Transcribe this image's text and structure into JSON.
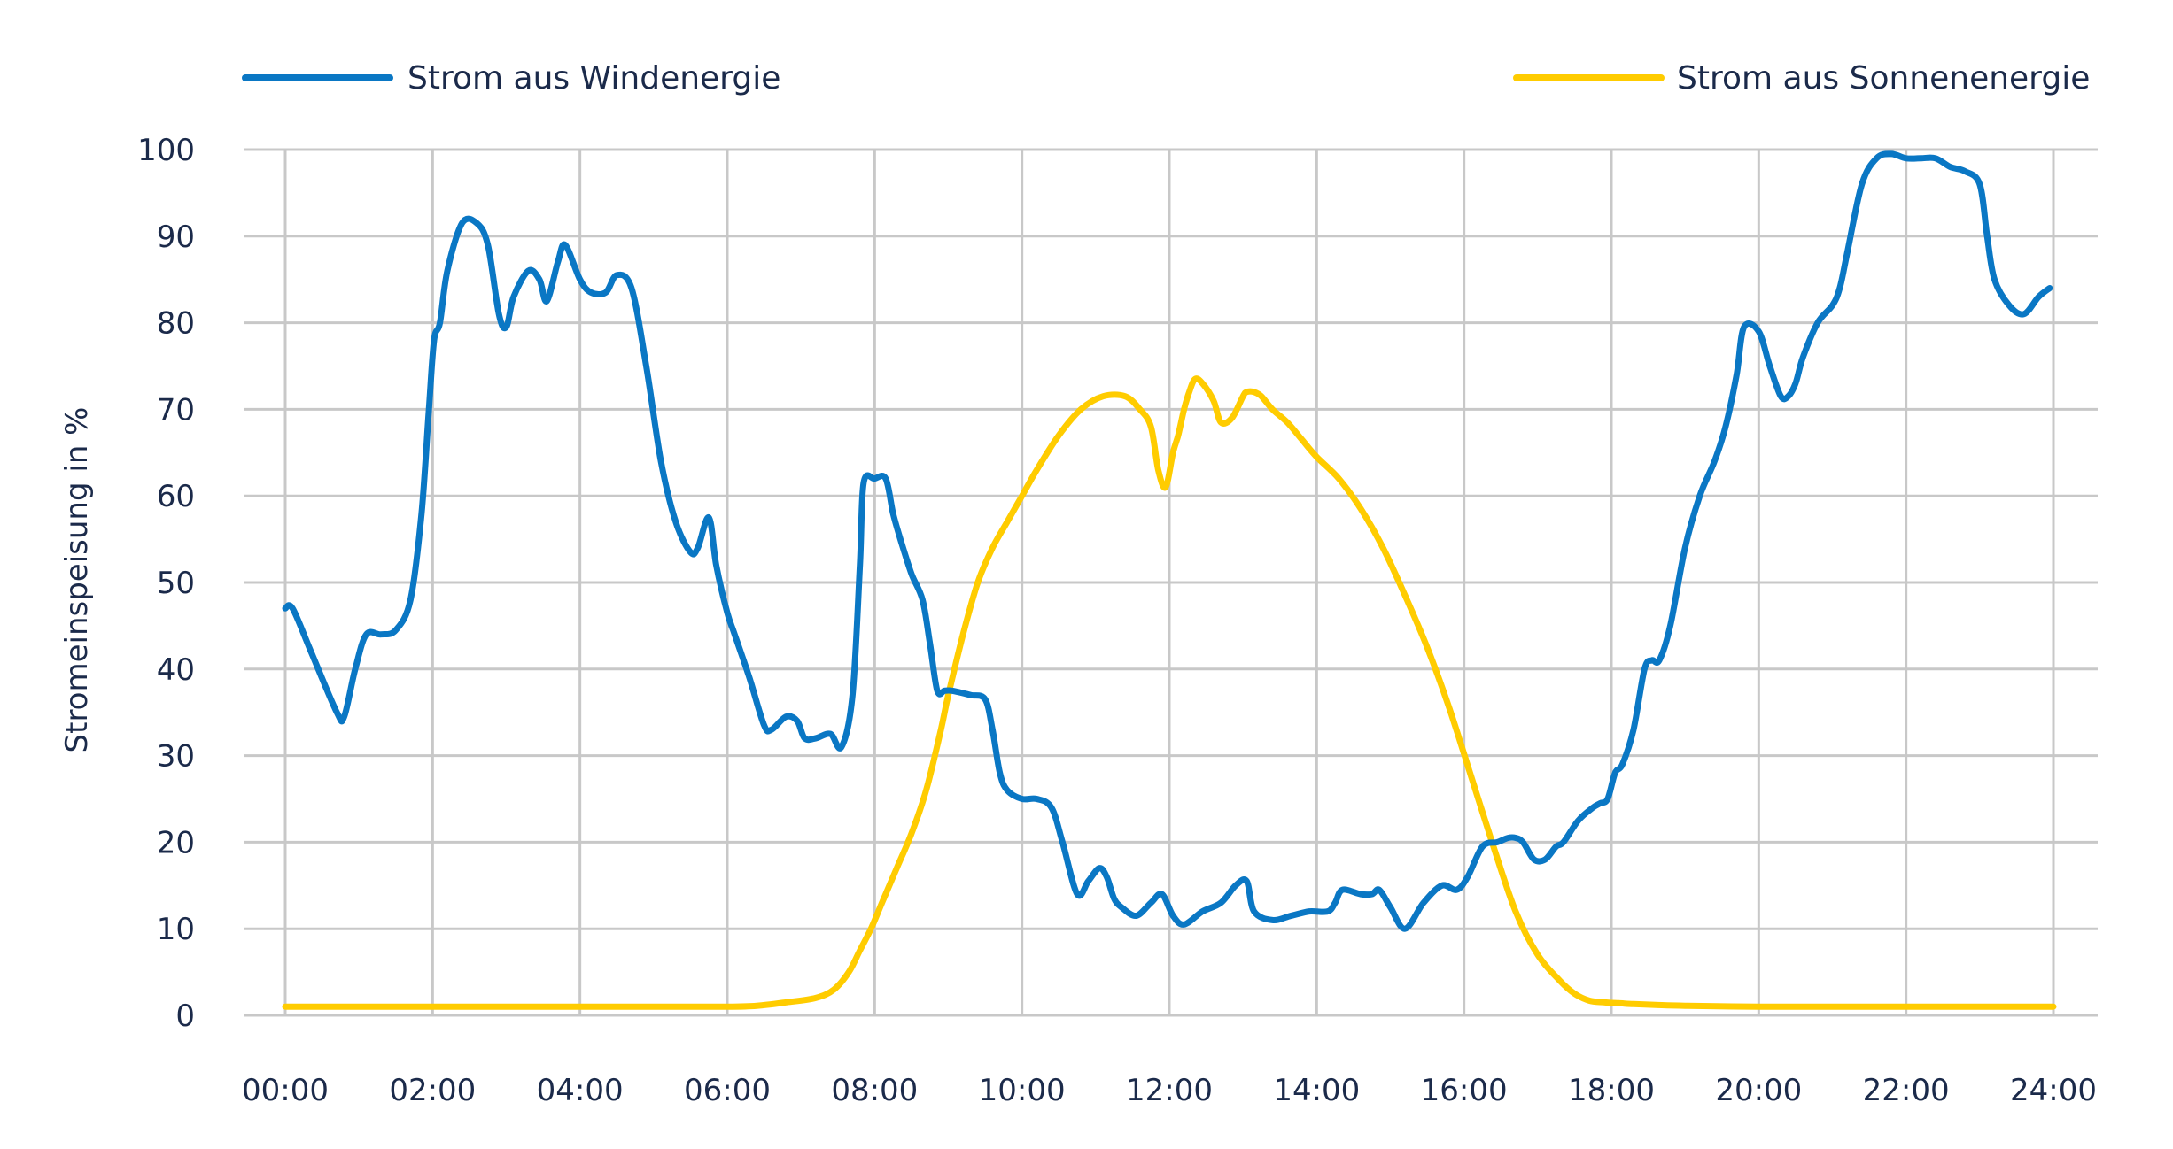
{
  "colors": {
    "wind": "#0a77c4",
    "solar": "#ffcc00",
    "grid": "#c8c8c8",
    "text": "#1b2a4a"
  },
  "chart_data": {
    "type": "line",
    "ylabel": "Stromeinspeisung in %",
    "xlabel": "",
    "ylim": [
      0,
      100
    ],
    "xlim": [
      0,
      24
    ],
    "x_unit": "hours",
    "grid": true,
    "legend_position": "top",
    "y_ticks": [
      "0",
      "10",
      "20",
      "30",
      "40",
      "50",
      "60",
      "70",
      "80",
      "90",
      "100"
    ],
    "x_ticks": [
      "00:00",
      "02:00",
      "04:00",
      "06:00",
      "08:00",
      "10:00",
      "12:00",
      "14:00",
      "16:00",
      "18:00",
      "20:00",
      "22:00",
      "24:00"
    ],
    "series": [
      {
        "name": "Strom aus Windenergie",
        "color": "#0a77c4",
        "x": [
          0.0,
          0.1,
          0.35,
          0.7,
          0.8,
          0.95,
          1.1,
          1.3,
          1.5,
          1.7,
          1.85,
          1.95,
          2.02,
          2.1,
          2.2,
          2.4,
          2.6,
          2.75,
          2.9,
          3.0,
          3.1,
          3.3,
          3.45,
          3.55,
          3.7,
          3.8,
          4.0,
          4.15,
          4.35,
          4.5,
          4.7,
          4.9,
          5.1,
          5.3,
          5.5,
          5.6,
          5.75,
          5.85,
          6.0,
          6.1,
          6.3,
          6.5,
          6.6,
          6.8,
          6.95,
          7.05,
          7.2,
          7.4,
          7.55,
          7.7,
          7.8,
          7.85,
          8.0,
          8.15,
          8.25,
          8.35,
          8.5,
          8.65,
          8.75,
          8.85,
          8.95,
          9.05,
          9.3,
          9.5,
          9.6,
          9.7,
          9.8,
          10.0,
          10.2,
          10.4,
          10.55,
          10.75,
          10.9,
          11.05,
          11.15,
          11.25,
          11.35,
          11.55,
          11.75,
          11.9,
          12.05,
          12.2,
          12.45,
          12.7,
          12.9,
          13.05,
          13.15,
          13.4,
          13.65,
          13.9,
          14.15,
          14.25,
          14.35,
          14.6,
          14.75,
          14.85,
          15.0,
          15.2,
          15.45,
          15.7,
          15.9,
          16.05,
          16.25,
          16.45,
          16.6,
          16.7,
          16.8,
          16.95,
          17.1,
          17.25,
          17.35,
          17.55,
          17.75,
          17.85,
          17.95,
          18.05,
          18.15,
          18.3,
          18.45,
          18.55,
          18.65,
          18.8,
          19.0,
          19.2,
          19.4,
          19.55,
          19.7,
          19.8,
          20.0,
          20.15,
          20.3,
          20.4,
          20.5,
          20.6,
          20.8,
          21.0,
          21.1,
          21.2,
          21.4,
          21.6,
          21.8,
          22.0,
          22.2,
          22.4,
          22.6,
          22.8,
          23.0,
          23.1,
          23.2,
          23.4,
          23.6,
          23.8,
          23.95
        ],
        "values": [
          47,
          47,
          42,
          35,
          34.5,
          40,
          44,
          44,
          44.5,
          48,
          58,
          70,
          78,
          80,
          86,
          91.5,
          91.5,
          89,
          81,
          79.5,
          83,
          86,
          85,
          82.5,
          87,
          89,
          85,
          83.5,
          83.5,
          85.5,
          84,
          75,
          64,
          57,
          53.5,
          54,
          57.5,
          52,
          46.5,
          44,
          39,
          33.5,
          33,
          34.5,
          34,
          32,
          32,
          32.5,
          31,
          37,
          52,
          61.5,
          62,
          62,
          58,
          55,
          51,
          48,
          43,
          37.5,
          37.5,
          37.5,
          37,
          36.5,
          33,
          28,
          26,
          25,
          25,
          24,
          20,
          14,
          15.5,
          17,
          16,
          13.5,
          12.5,
          11.5,
          13,
          14,
          11.5,
          10.5,
          12,
          13,
          15,
          15.5,
          12,
          11,
          11.5,
          12,
          12,
          13,
          14.5,
          14,
          14,
          14.5,
          12.5,
          10,
          13,
          15,
          14.5,
          16,
          19.5,
          20,
          20.5,
          20.5,
          20,
          18,
          18,
          19.5,
          20,
          22.5,
          24,
          24.5,
          25,
          28,
          29,
          33,
          40,
          41,
          41,
          45,
          54,
          60,
          64,
          68,
          74,
          79.5,
          79,
          75,
          71.5,
          71.5,
          73,
          76,
          80,
          82,
          84,
          88,
          96,
          99,
          99.5,
          99,
          99,
          99,
          98,
          97.5,
          96,
          90,
          85,
          82,
          81,
          83,
          84
        ]
      },
      {
        "name": "Strom aus Sonnenenergie",
        "color": "#ffcc00",
        "x": [
          0.0,
          1.0,
          2.0,
          3.0,
          4.0,
          5.0,
          6.0,
          6.4,
          6.8,
          7.2,
          7.45,
          7.65,
          7.8,
          7.95,
          8.1,
          8.3,
          8.5,
          8.7,
          8.9,
          9.0,
          9.2,
          9.4,
          9.6,
          9.8,
          10.0,
          10.2,
          10.5,
          10.8,
          11.1,
          11.4,
          11.6,
          11.75,
          11.85,
          11.95,
          12.05,
          12.12,
          12.2,
          12.27,
          12.35,
          12.45,
          12.6,
          12.7,
          12.85,
          13.0,
          13.05,
          13.15,
          13.25,
          13.4,
          13.6,
          13.8,
          14.0,
          14.3,
          14.6,
          14.9,
          15.2,
          15.5,
          15.8,
          16.1,
          16.4,
          16.7,
          17.0,
          17.3,
          17.5,
          17.7,
          17.9,
          18.1,
          18.3,
          18.6,
          19.0,
          20.0,
          21.0,
          22.0,
          23.0,
          24.0
        ],
        "values": [
          1,
          1,
          1,
          1,
          1,
          1,
          1,
          1.1,
          1.5,
          2,
          3,
          5,
          7.5,
          10,
          13,
          17,
          21,
          26,
          33,
          37,
          44,
          50,
          54,
          57,
          60,
          63,
          67,
          70,
          71.5,
          71.5,
          70,
          68,
          63,
          61,
          65,
          67,
          70,
          72,
          73.5,
          73,
          71,
          68.5,
          69,
          71.5,
          72,
          72,
          71.5,
          70,
          68.5,
          66.5,
          64.5,
          62,
          58.5,
          54,
          48.5,
          42.5,
          35.5,
          27.5,
          19.5,
          12,
          7,
          4,
          2.5,
          1.7,
          1.5,
          1.4,
          1.3,
          1.2,
          1.1,
          1,
          1,
          1,
          1,
          1
        ]
      }
    ]
  }
}
